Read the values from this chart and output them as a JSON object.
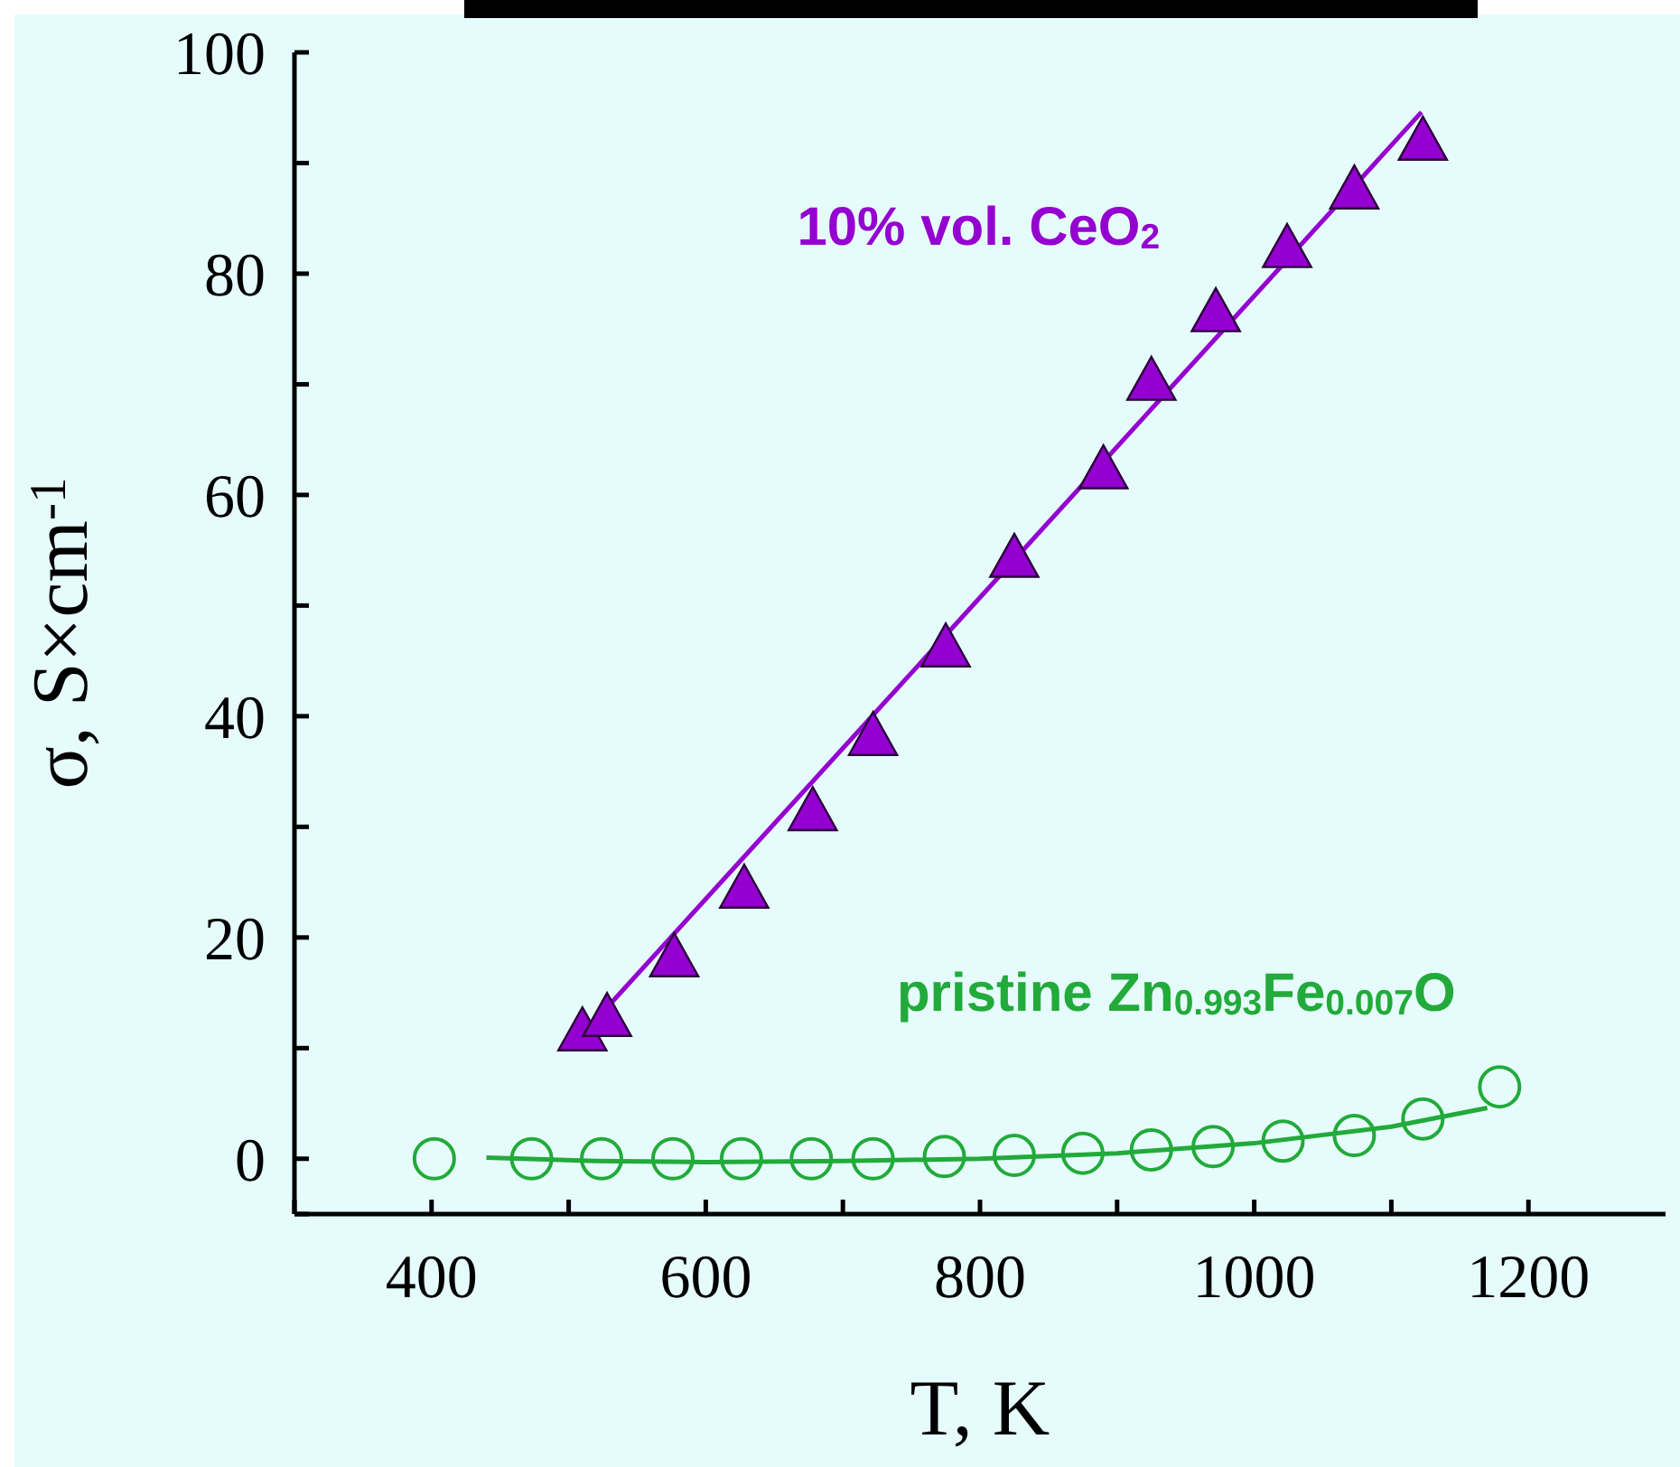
{
  "chart_data": {
    "type": "scatter",
    "xlabel": "T, K",
    "ylabel": "σ, S×cm$^{-1}$",
    "xlim": [
      300,
      1300
    ],
    "ylim": [
      -5,
      100
    ],
    "xticks": [
      {
        "value": 300,
        "label": null
      },
      400,
      {
        "value": 500,
        "label": null
      },
      600,
      {
        "value": 700,
        "label": null
      },
      800,
      {
        "value": 900,
        "label": null
      },
      1000,
      {
        "value": 1100,
        "label": null
      },
      1200
    ],
    "yticks": [
      {
        "value": -5,
        "label": null
      },
      0,
      {
        "value": 10,
        "label": null
      },
      20,
      {
        "value": 30,
        "label": null
      },
      40,
      {
        "value": 50,
        "label": null
      },
      60,
      {
        "value": 70,
        "label": null
      },
      80,
      {
        "value": 90,
        "label": null
      },
      100
    ],
    "series": [
      {
        "name": "10% vol. CeO$_{2}$",
        "marker": "triangle",
        "color": "#9400d0",
        "x": [
          510,
          528,
          577,
          628,
          678,
          722,
          775,
          825,
          890,
          925,
          972,
          1024,
          1073,
          1123
        ],
        "values": [
          11.4,
          12.7,
          18.1,
          24.3,
          31.3,
          38.1,
          46.1,
          54.2,
          62.2,
          70.2,
          76.4,
          82.2,
          87.5,
          91.9
        ]
      },
      {
        "type": "line",
        "marker": "none",
        "color": "#9400d0",
        "x": [
          515,
          1122
        ],
        "values": [
          11.9,
          94.6
        ]
      },
      {
        "name": "pristine Zn$_{0.993}$Fe$_{0.007}$O",
        "marker": "circle",
        "color": "#22aa3a",
        "x": [
          402,
          473,
          524,
          576,
          626,
          677,
          722,
          774,
          825,
          875,
          925,
          970,
          1021,
          1073,
          1123,
          1179
        ],
        "values": [
          0,
          0,
          0,
          0,
          0,
          0,
          0,
          0.2,
          0.3,
          0.5,
          0.8,
          1.1,
          1.6,
          2.1,
          3.6,
          6.5
        ]
      },
      {
        "type": "line",
        "marker": "none",
        "color": "#22aa3a",
        "x": [
          440,
          520,
          600,
          700,
          800,
          900,
          1000,
          1100,
          1170
        ],
        "values": [
          0.1,
          -0.2,
          -0.3,
          -0.2,
          0,
          0.5,
          1.4,
          2.9,
          4.6
        ]
      }
    ]
  }
}
